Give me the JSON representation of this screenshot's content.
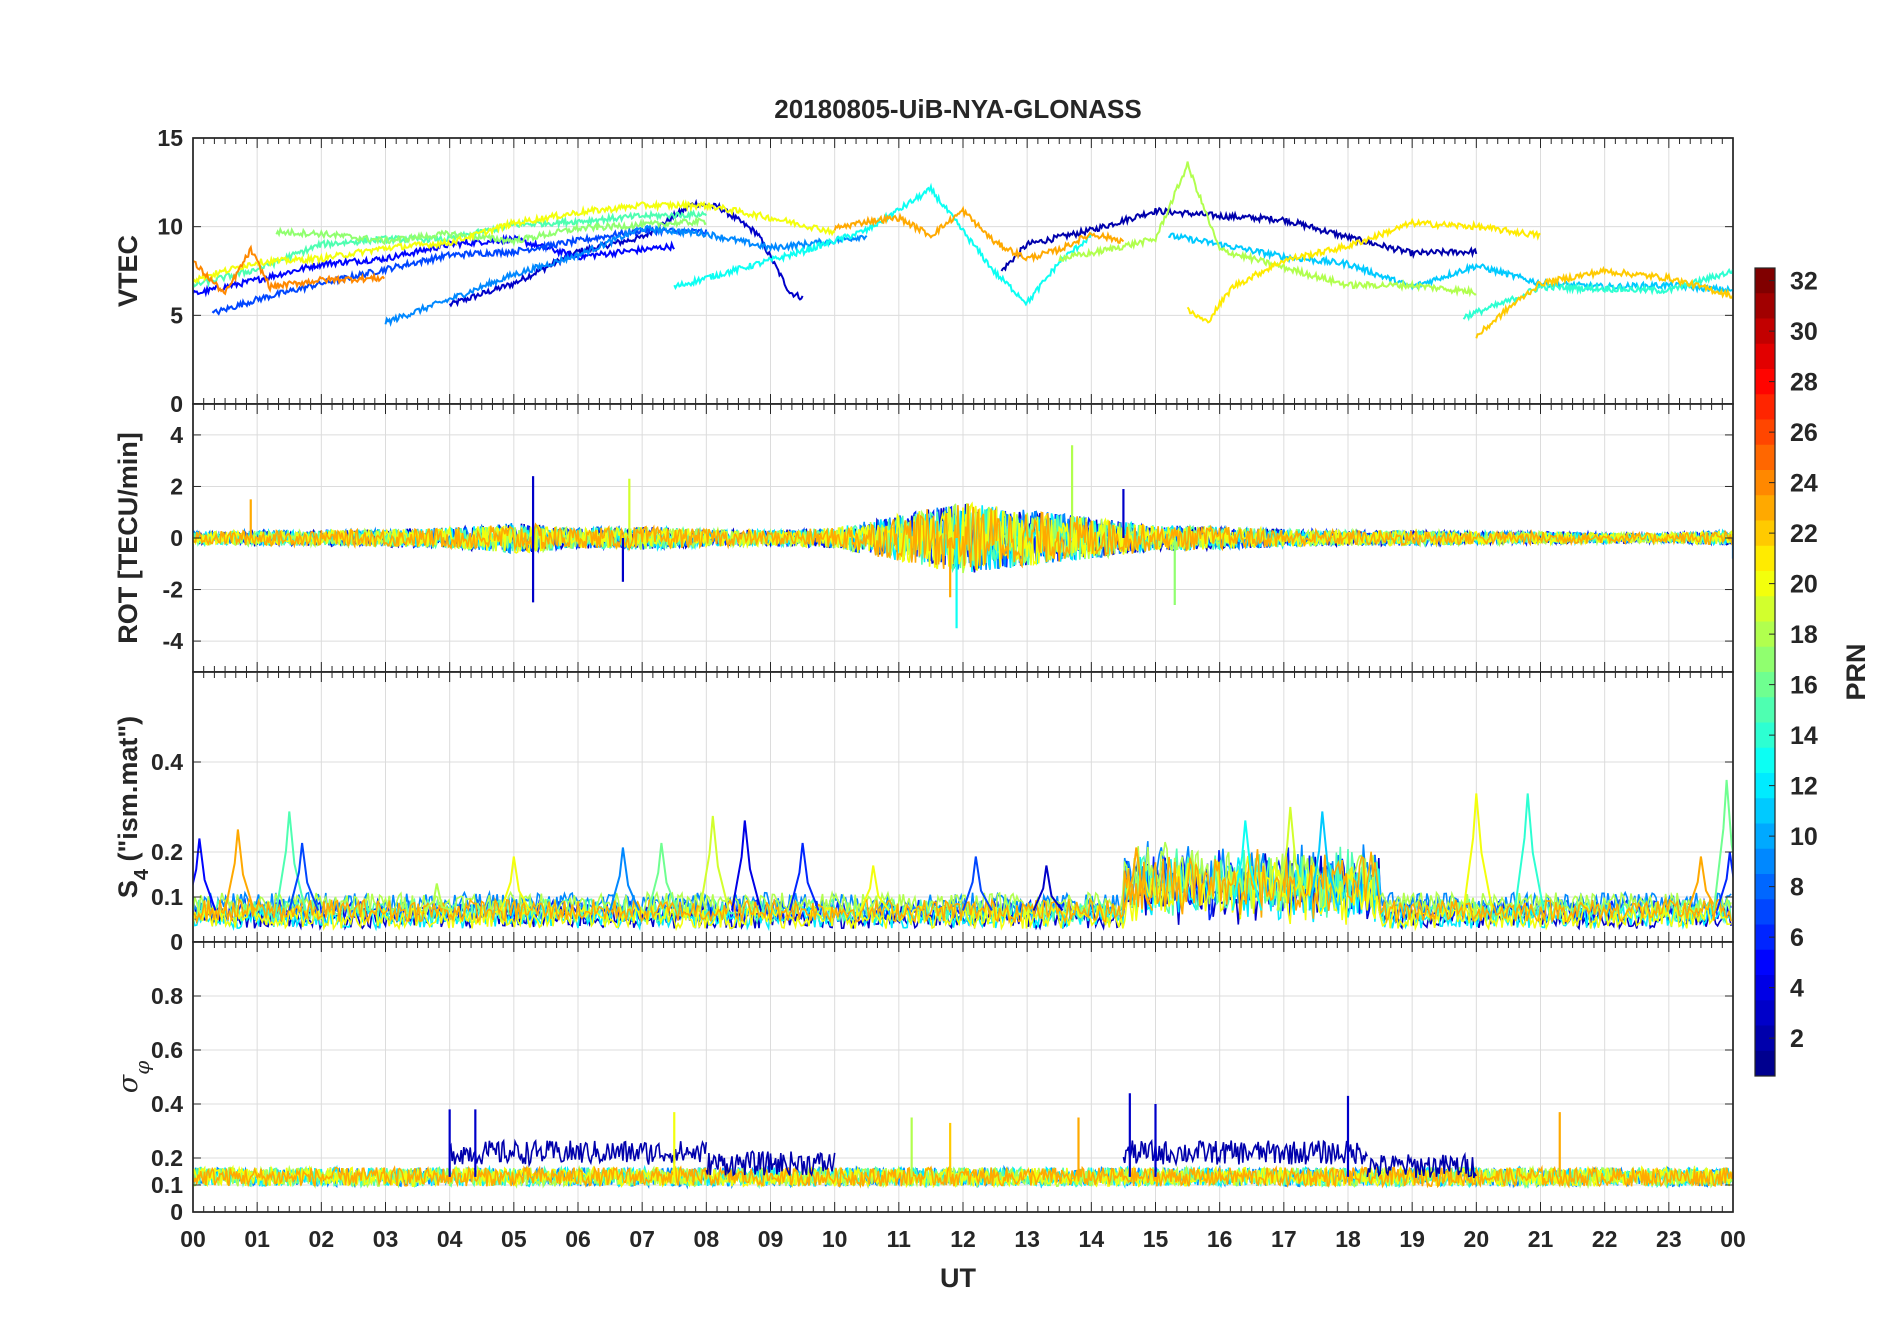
{
  "chart_data": {
    "title": "20180805-UiB-NYA-GLONASS",
    "x_axis": {
      "label": "UT",
      "range_hours": [
        0,
        24
      ],
      "tick_labels": [
        "00",
        "01",
        "02",
        "03",
        "04",
        "05",
        "06",
        "07",
        "08",
        "09",
        "10",
        "11",
        "12",
        "13",
        "14",
        "15",
        "16",
        "17",
        "18",
        "19",
        "20",
        "21",
        "22",
        "23",
        "00"
      ]
    },
    "colorbar": {
      "label": "PRN",
      "range": [
        1,
        32
      ],
      "tick_labels": [
        "2",
        "4",
        "6",
        "8",
        "10",
        "12",
        "14",
        "16",
        "18",
        "20",
        "22",
        "24",
        "26",
        "28",
        "30",
        "32"
      ],
      "colormap": [
        "#00008f",
        "#0000ff",
        "#0080ff",
        "#00ffff",
        "#80ff80",
        "#ffff00",
        "#ff8000",
        "#ff0000",
        "#800000"
      ]
    },
    "panels": [
      {
        "id": "vtec",
        "type": "line",
        "ylabel": "VTEC",
        "ylim": [
          0,
          15
        ],
        "yticks": [
          0,
          5,
          10,
          15
        ],
        "ytick_labels": [
          "0",
          "5",
          "10",
          "15"
        ],
        "series": [
          {
            "prn": 3,
            "points": [
              [
                4,
                5.6
              ],
              [
                5,
                6.8
              ],
              [
                6,
                8.6
              ],
              [
                7,
                9.4
              ],
              [
                7.8,
                11.3
              ],
              [
                8.2,
                11.1
              ],
              [
                8.8,
                9.6
              ],
              [
                9.3,
                6.3
              ],
              [
                9.5,
                6.0
              ]
            ]
          },
          {
            "prn": 2,
            "points": [
              [
                12.6,
                7.5
              ],
              [
                13,
                9.0
              ],
              [
                14,
                9.8
              ],
              [
                15,
                10.9
              ],
              [
                16,
                10.6
              ],
              [
                17,
                10.4
              ],
              [
                18,
                9.4
              ],
              [
                19,
                8.5
              ],
              [
                20,
                8.6
              ]
            ]
          },
          {
            "prn": 5,
            "points": [
              [
                0,
                6.2
              ],
              [
                1,
                7.0
              ],
              [
                2,
                7.9
              ],
              [
                3,
                8.2
              ],
              [
                4,
                9.0
              ],
              [
                5,
                9.3
              ],
              [
                6,
                8.3
              ],
              [
                7.5,
                8.9
              ]
            ]
          },
          {
            "prn": 7,
            "points": [
              [
                0.3,
                5.1
              ],
              [
                1,
                5.9
              ],
              [
                2,
                6.8
              ],
              [
                3,
                7.6
              ],
              [
                4,
                8.4
              ],
              [
                5,
                8.6
              ],
              [
                6,
                9.2
              ],
              [
                7,
                9.8
              ],
              [
                8,
                9.7
              ]
            ]
          },
          {
            "prn": 9,
            "points": [
              [
                3,
                4.6
              ],
              [
                4,
                5.9
              ],
              [
                5,
                7.3
              ],
              [
                6,
                8.4
              ],
              [
                7,
                9.9
              ],
              [
                8,
                9.6
              ],
              [
                9,
                8.8
              ],
              [
                10,
                9.2
              ],
              [
                10.5,
                9.5
              ]
            ]
          },
          {
            "prn": 11,
            "points": [
              [
                15.2,
                9.5
              ],
              [
                16,
                9.0
              ],
              [
                17,
                8.3
              ],
              [
                18,
                7.9
              ],
              [
                19,
                6.6
              ],
              [
                20,
                7.8
              ],
              [
                21,
                6.8
              ],
              [
                22,
                6.6
              ],
              [
                23,
                6.7
              ],
              [
                24,
                6.4
              ]
            ]
          },
          {
            "prn": 13,
            "points": [
              [
                7.5,
                6.6
              ],
              [
                8.5,
                7.6
              ],
              [
                9.5,
                8.6
              ],
              [
                10.5,
                9.8
              ],
              [
                11.5,
                12.1
              ],
              [
                12.5,
                7.4
              ],
              [
                13,
                5.7
              ],
              [
                13.5,
                8.0
              ],
              [
                14,
                9.5
              ]
            ]
          },
          {
            "prn": 15,
            "points": [
              [
                0,
                6.7
              ],
              [
                1,
                7.6
              ],
              [
                2,
                9.0
              ],
              [
                3,
                9.3
              ],
              [
                4,
                9.3
              ],
              [
                5,
                10.1
              ],
              [
                6,
                10.3
              ],
              [
                7,
                10.6
              ],
              [
                8,
                10.7
              ]
            ]
          },
          {
            "prn": 14,
            "points": [
              [
                19.8,
                4.9
              ],
              [
                20.5,
                5.8
              ],
              [
                21,
                6.6
              ],
              [
                22,
                6.5
              ],
              [
                23,
                6.4
              ],
              [
                24,
                7.5
              ]
            ]
          },
          {
            "prn": 17,
            "points": [
              [
                1.3,
                9.7
              ],
              [
                2,
                9.6
              ],
              [
                3,
                9.2
              ],
              [
                4,
                9.6
              ],
              [
                5,
                9.2
              ],
              [
                6,
                9.9
              ],
              [
                7,
                10.1
              ],
              [
                8,
                10.3
              ]
            ]
          },
          {
            "prn": 18,
            "points": [
              [
                13.5,
                8.2
              ],
              [
                14,
                8.5
              ],
              [
                15,
                9.3
              ],
              [
                15.5,
                13.5
              ],
              [
                16,
                8.7
              ],
              [
                17,
                7.7
              ],
              [
                18,
                6.7
              ],
              [
                19,
                6.7
              ],
              [
                20,
                6.3
              ]
            ]
          },
          {
            "prn": 20,
            "points": [
              [
                0,
                7.0
              ],
              [
                1,
                8.0
              ],
              [
                2,
                8.2
              ],
              [
                3,
                8.8
              ],
              [
                4,
                9.1
              ],
              [
                5,
                10.2
              ],
              [
                6,
                10.8
              ],
              [
                7,
                11.2
              ],
              [
                8,
                11.2
              ],
              [
                9,
                10.5
              ],
              [
                10,
                9.7
              ]
            ]
          },
          {
            "prn": 21,
            "points": [
              [
                15.5,
                5.3
              ],
              [
                15.8,
                4.6
              ],
              [
                16.2,
                6.6
              ],
              [
                17,
                8.1
              ],
              [
                18,
                8.9
              ],
              [
                19,
                10.2
              ],
              [
                20,
                10.0
              ],
              [
                21,
                9.5
              ]
            ]
          },
          {
            "prn": 23,
            "points": [
              [
                10,
                9.9
              ],
              [
                10.5,
                10.3
              ],
              [
                11,
                10.5
              ],
              [
                11.5,
                9.5
              ],
              [
                12,
                10.9
              ],
              [
                12.5,
                9.1
              ],
              [
                13,
                8.2
              ],
              [
                13.5,
                8.7
              ],
              [
                14,
                9.6
              ],
              [
                14.5,
                9.2
              ]
            ]
          },
          {
            "prn": 24,
            "points": [
              [
                0,
                8.0
              ],
              [
                0.5,
                6.2
              ],
              [
                0.9,
                8.7
              ],
              [
                1.2,
                6.6
              ],
              [
                2,
                7.0
              ],
              [
                3,
                7.1
              ]
            ]
          },
          {
            "prn": 22,
            "points": [
              [
                20,
                3.8
              ],
              [
                20.5,
                5.4
              ],
              [
                21,
                6.8
              ],
              [
                22,
                7.5
              ],
              [
                23,
                7.1
              ],
              [
                24,
                6.1
              ]
            ]
          }
        ]
      },
      {
        "id": "rot",
        "type": "line",
        "ylabel": "ROT [TECU/min]",
        "ylim": [
          -5.2,
          5.2
        ],
        "yticks": [
          -4,
          -2,
          0,
          2,
          4
        ],
        "ytick_labels": [
          "-4",
          "-2",
          "0",
          "2",
          "4"
        ],
        "noise_envelope": [
          [
            0,
            0.25
          ],
          [
            1,
            0.3
          ],
          [
            2,
            0.3
          ],
          [
            4,
            0.4
          ],
          [
            5,
            0.6
          ],
          [
            6,
            0.4
          ],
          [
            7,
            0.45
          ],
          [
            8,
            0.35
          ],
          [
            9,
            0.3
          ],
          [
            10,
            0.4
          ],
          [
            11,
            0.9
          ],
          [
            12,
            1.4
          ],
          [
            13,
            1.1
          ],
          [
            14,
            0.8
          ],
          [
            15,
            0.5
          ],
          [
            16,
            0.45
          ],
          [
            17,
            0.35
          ],
          [
            18,
            0.3
          ],
          [
            19,
            0.3
          ],
          [
            20,
            0.25
          ],
          [
            21,
            0.25
          ],
          [
            22,
            0.2
          ],
          [
            23,
            0.2
          ],
          [
            24,
            0.3
          ]
        ],
        "spikes": [
          [
            0.9,
            1.5,
            23
          ],
          [
            5.3,
            2.4,
            3
          ],
          [
            5.3,
            -2.5,
            3
          ],
          [
            6.8,
            2.3,
            19
          ],
          [
            6.7,
            -1.7,
            3
          ],
          [
            11.8,
            -2.3,
            23
          ],
          [
            11.9,
            -3.5,
            13
          ],
          [
            13.7,
            3.6,
            18
          ],
          [
            14.5,
            1.9,
            3
          ],
          [
            15.3,
            -2.6,
            17
          ],
          [
            24,
            -0.8,
            9
          ]
        ]
      },
      {
        "id": "s4",
        "type": "line",
        "ylabel": "S4 (\"ism.mat\")",
        "ylabel_main": "S",
        "ylabel_sub": "4",
        "ylabel_rest": " (\"ism.mat\")",
        "ylim": [
          0,
          0.6
        ],
        "yticks": [
          0,
          0.1,
          0.2,
          0.4
        ],
        "ytick_labels": [
          "0",
          "0.1",
          "0.2",
          "0.4"
        ],
        "baseline": 0.07,
        "peaks": [
          [
            0.1,
            0.23,
            5
          ],
          [
            0.7,
            0.25,
            23
          ],
          [
            1.5,
            0.29,
            15
          ],
          [
            1.7,
            0.22,
            7
          ],
          [
            3.8,
            0.13,
            18
          ],
          [
            5.0,
            0.19,
            20
          ],
          [
            6.7,
            0.21,
            9
          ],
          [
            7.3,
            0.22,
            16
          ],
          [
            8.1,
            0.28,
            19
          ],
          [
            8.6,
            0.27,
            4
          ],
          [
            9.5,
            0.22,
            6
          ],
          [
            10.6,
            0.17,
            20
          ],
          [
            12.2,
            0.19,
            7
          ],
          [
            13.3,
            0.17,
            3
          ],
          [
            14.7,
            0.21,
            23
          ],
          [
            16.4,
            0.27,
            13
          ],
          [
            17.1,
            0.3,
            19
          ],
          [
            17.6,
            0.29,
            11
          ],
          [
            20,
            0.33,
            20
          ],
          [
            20.8,
            0.33,
            14
          ],
          [
            23.5,
            0.19,
            23
          ],
          [
            23.9,
            0.36,
            16
          ],
          [
            23.95,
            0.2,
            6
          ]
        ]
      },
      {
        "id": "sigma_phi",
        "type": "line",
        "ylabel": "σφ",
        "ylabel_main": "σ",
        "ylabel_sub": "φ",
        "ylim": [
          0,
          1.0
        ],
        "yticks": [
          0,
          0.1,
          0.2,
          0.4,
          0.6,
          0.8
        ],
        "ytick_labels": [
          "0",
          "0.1",
          "0.2",
          "0.4",
          "0.6",
          "0.8"
        ],
        "baseline": 0.13,
        "elevated_band": {
          "prn": 2,
          "segments": [
            [
              4,
              8.0,
              0.22
            ],
            [
              8.0,
              10.0,
              0.18
            ],
            [
              14.5,
              18.3,
              0.22
            ],
            [
              18.3,
              20,
              0.17
            ]
          ]
        },
        "spikes": [
          [
            4.0,
            0.38,
            3
          ],
          [
            4.4,
            0.38,
            3
          ],
          [
            7.5,
            0.37,
            20
          ],
          [
            11.2,
            0.35,
            18
          ],
          [
            11.8,
            0.33,
            22
          ],
          [
            13.8,
            0.35,
            23
          ],
          [
            14.6,
            0.44,
            3
          ],
          [
            15.0,
            0.4,
            3
          ],
          [
            18.0,
            0.43,
            3
          ],
          [
            21.3,
            0.37,
            23
          ]
        ]
      }
    ]
  }
}
